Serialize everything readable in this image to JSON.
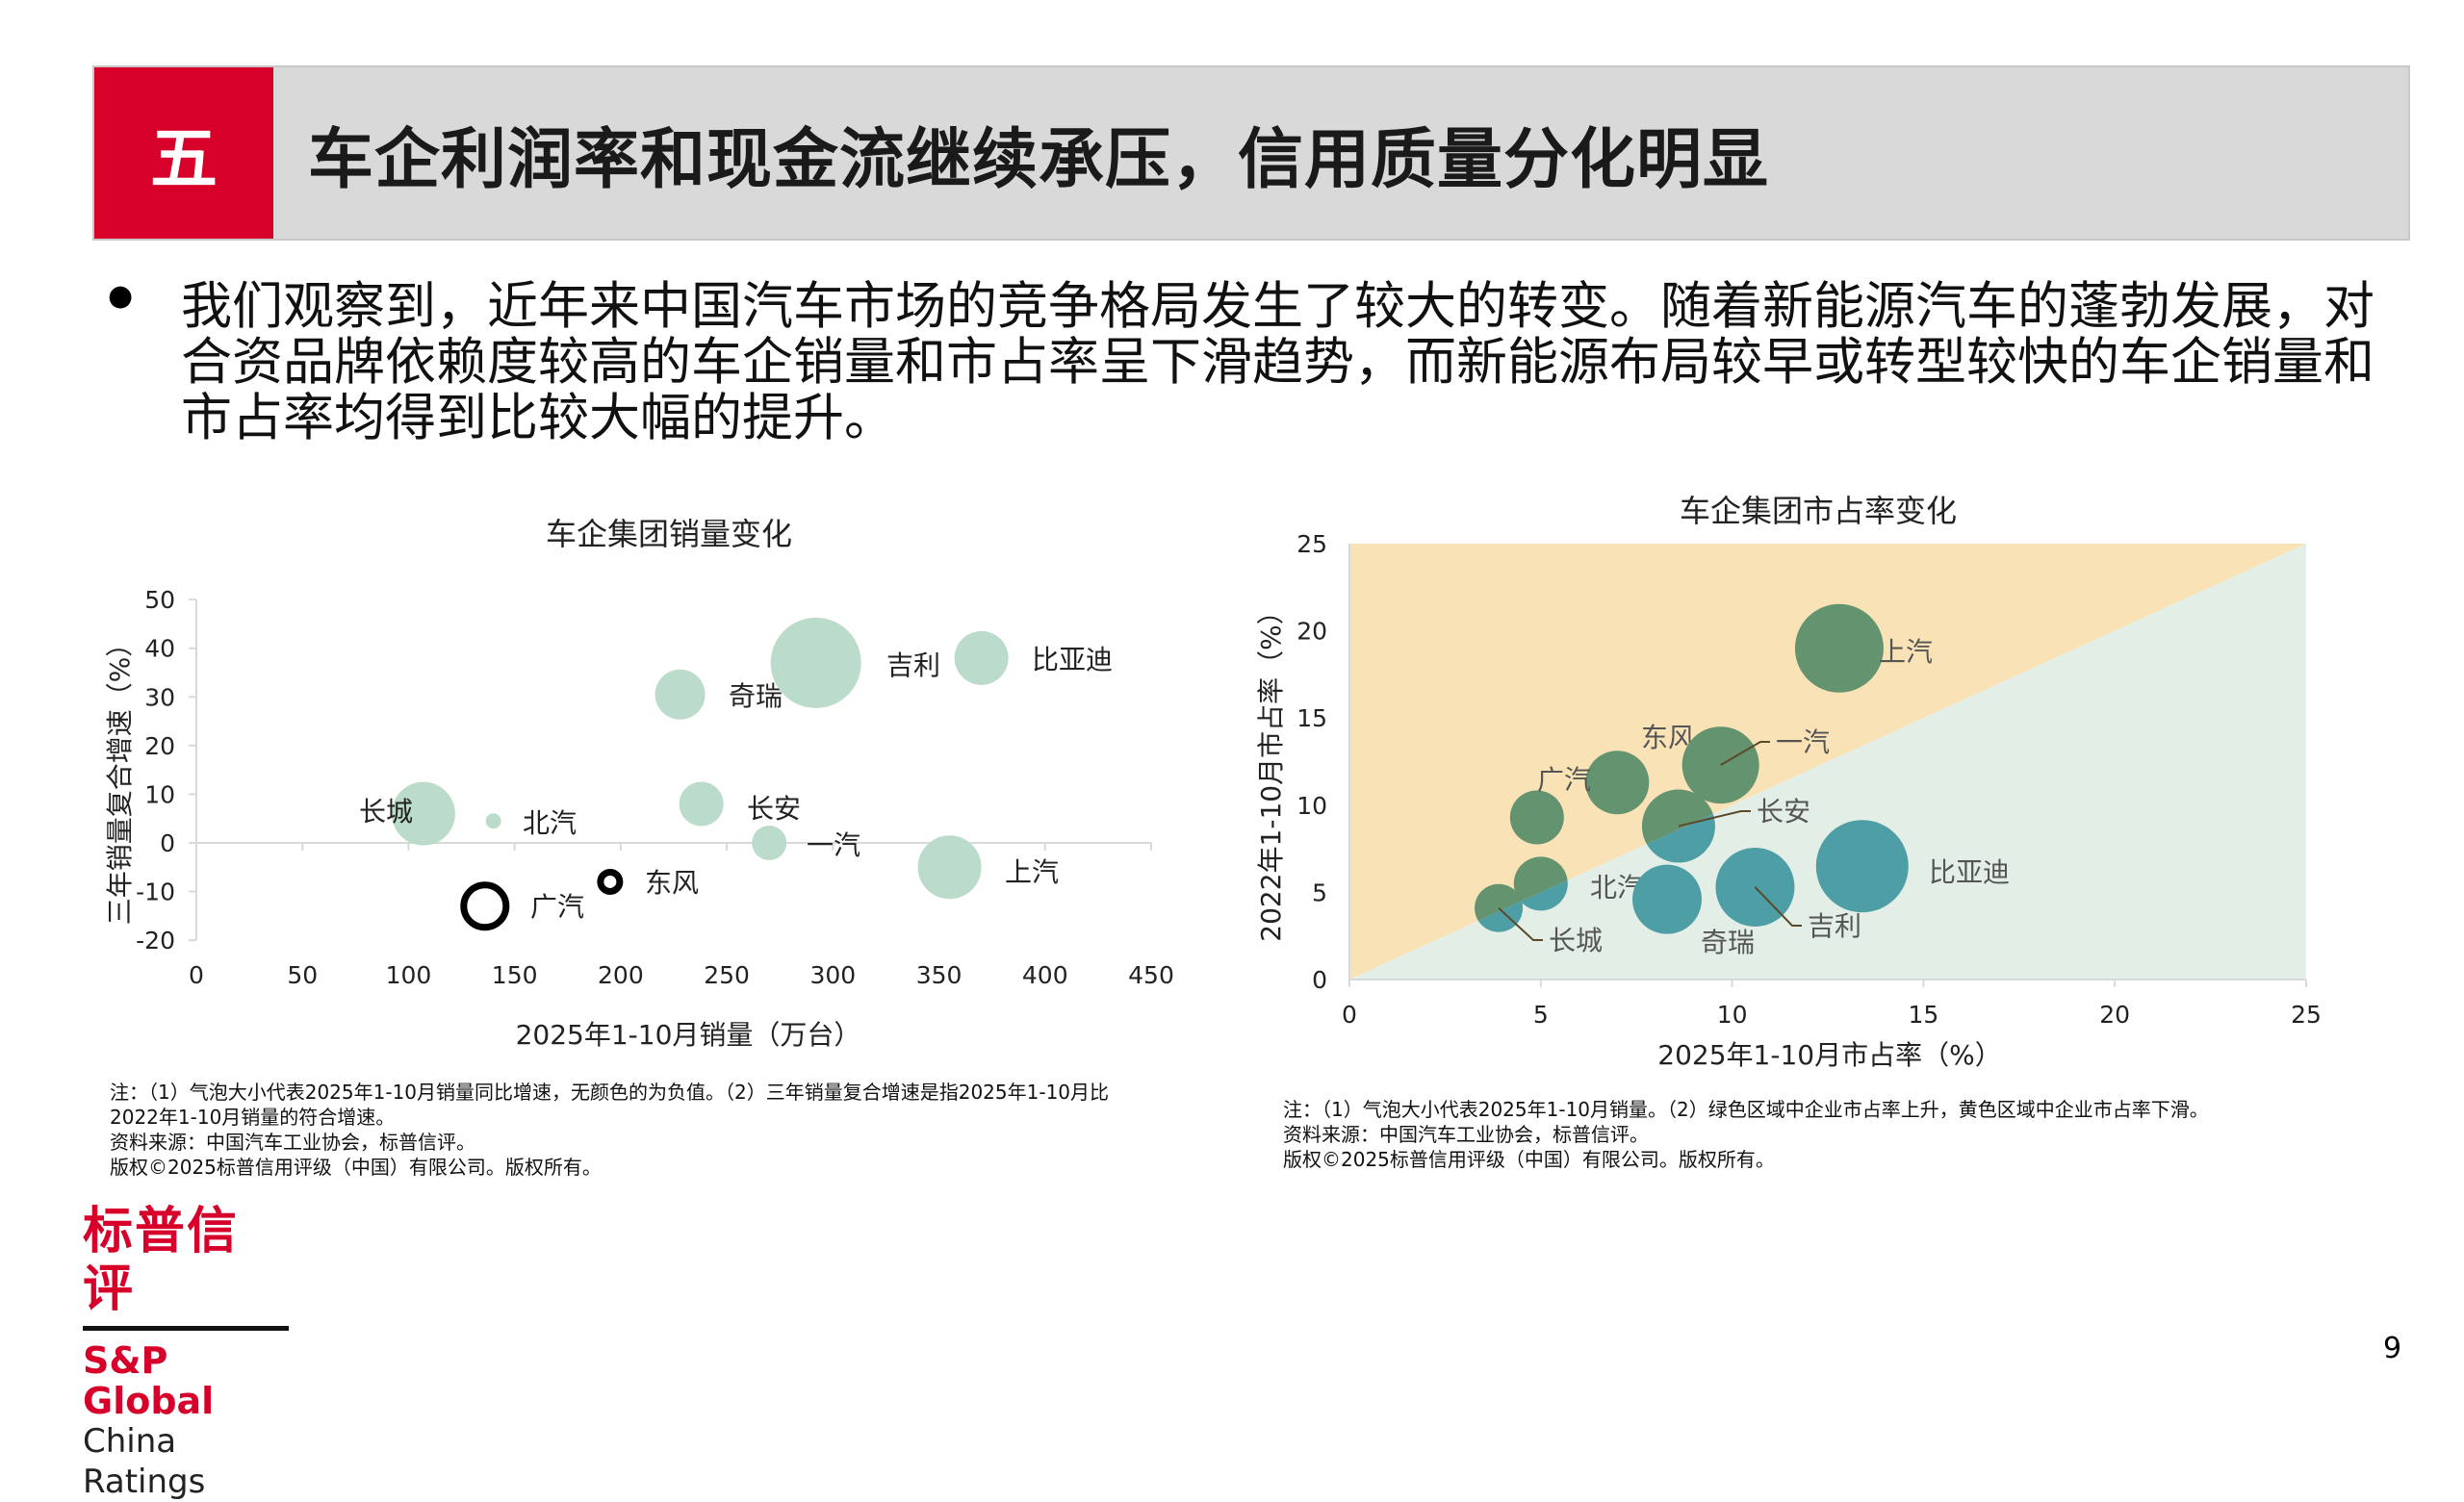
{
  "header": {
    "number": "五",
    "title": "车企利润率和现金流继续承压，信用质量分化明显"
  },
  "bullet": "我们观察到，近年来中国汽车市场的竞争格局发生了较大的转变。随着新能源汽车的蓬勃发展，对合资品牌依赖度较高的车企销量和市占率呈下滑趋势，而新能源布局较早或转型较快的车企销量和市占率均得到比较大幅的提升。",
  "chart_data": [
    {
      "type": "bubble",
      "title": "车企集团销量变化",
      "xlabel": "2025年1-10月销量（万台）",
      "ylabel": "三年销量复合增速（%）",
      "xlim": [
        0,
        450
      ],
      "ylim": [
        -20,
        50
      ],
      "xticks": [
        "0",
        "50",
        "100",
        "150",
        "200",
        "250",
        "300",
        "350",
        "400",
        "450"
      ],
      "yticks": [
        "50",
        "40",
        "30",
        "20",
        "10",
        "0",
        "-10",
        "-20"
      ],
      "bubble_color": "#bcdccb",
      "negative_style": "hollow",
      "points": [
        {
          "name": "长城",
          "x": 107,
          "y": 6,
          "size": 33,
          "negative": false
        },
        {
          "name": "北汽",
          "x": 140,
          "y": 4.5,
          "size": 8,
          "negative": false
        },
        {
          "name": "奇瑞",
          "x": 228,
          "y": 30.5,
          "size": 26,
          "negative": false
        },
        {
          "name": "吉利",
          "x": 292,
          "y": 37,
          "size": 47,
          "negative": false
        },
        {
          "name": "比亚迪",
          "x": 370,
          "y": 38,
          "size": 28,
          "negative": false
        },
        {
          "name": "长安",
          "x": 238,
          "y": 8,
          "size": 23,
          "negative": false
        },
        {
          "name": "一汽",
          "x": 270,
          "y": 0,
          "size": 18,
          "negative": false
        },
        {
          "name": "上汽",
          "x": 355,
          "y": -5,
          "size": 33,
          "negative": false
        },
        {
          "name": "东风",
          "x": 195,
          "y": -8,
          "size": 10,
          "negative": true
        },
        {
          "name": "广汽",
          "x": 136,
          "y": -13,
          "size": 22,
          "negative": true
        }
      ]
    },
    {
      "type": "bubble",
      "title": "车企集团市占率变化",
      "xlabel": "2025年1-10月市占率（%）",
      "ylabel": "2022年1-10月市占率（%）",
      "xlim": [
        0,
        25
      ],
      "ylim": [
        0,
        25
      ],
      "xticks": [
        "0",
        "5",
        "10",
        "15",
        "20",
        "25"
      ],
      "yticks": [
        "25",
        "20",
        "15",
        "10",
        "5",
        "0"
      ],
      "colors": {
        "decline_area": "#f9e2b6",
        "rise_area": "#e3efe6",
        "decline_bubble": "#64936f",
        "rise_bubble": "#4e9ea6"
      },
      "points": [
        {
          "name": "上汽",
          "x": 12.8,
          "y": 19.0,
          "size": 46
        },
        {
          "name": "东风",
          "x": 7.0,
          "y": 11.3,
          "size": 33
        },
        {
          "name": "一汽",
          "x": 9.7,
          "y": 12.3,
          "size": 40
        },
        {
          "name": "广汽",
          "x": 4.9,
          "y": 9.3,
          "size": 28
        },
        {
          "name": "长安",
          "x": 8.6,
          "y": 8.8,
          "size": 38
        },
        {
          "name": "北汽",
          "x": 5.0,
          "y": 5.5,
          "size": 28
        },
        {
          "name": "长城",
          "x": 3.9,
          "y": 4.1,
          "size": 25
        },
        {
          "name": "奇瑞",
          "x": 8.3,
          "y": 4.6,
          "size": 36
        },
        {
          "name": "吉利",
          "x": 10.6,
          "y": 5.3,
          "size": 41
        },
        {
          "name": "比亚迪",
          "x": 13.4,
          "y": 6.5,
          "size": 48
        }
      ]
    }
  ],
  "notes_left": [
    "注：（1）气泡大小代表2025年1-10月销量同比增速，无颜色的为负值。（2）三年销量复合增速是指2025年1-10月比",
    "2022年1-10月销量的符合增速。",
    "资料来源：中国汽车工业协会，标普信评。",
    "版权©2025标普信用评级（中国）有限公司。版权所有。"
  ],
  "notes_right": [
    "注：（1）气泡大小代表2025年1-10月销量。（2）绿色区域中企业市占率上升，黄色区域中企业市占率下滑。",
    "资料来源：中国汽车工业协会，标普信评。",
    "版权©2025标普信用评级（中国）有限公司。版权所有。"
  ],
  "logo": {
    "cn": "标普信评",
    "en": "S&P Global",
    "sub": "China Ratings"
  },
  "page_number": "9"
}
